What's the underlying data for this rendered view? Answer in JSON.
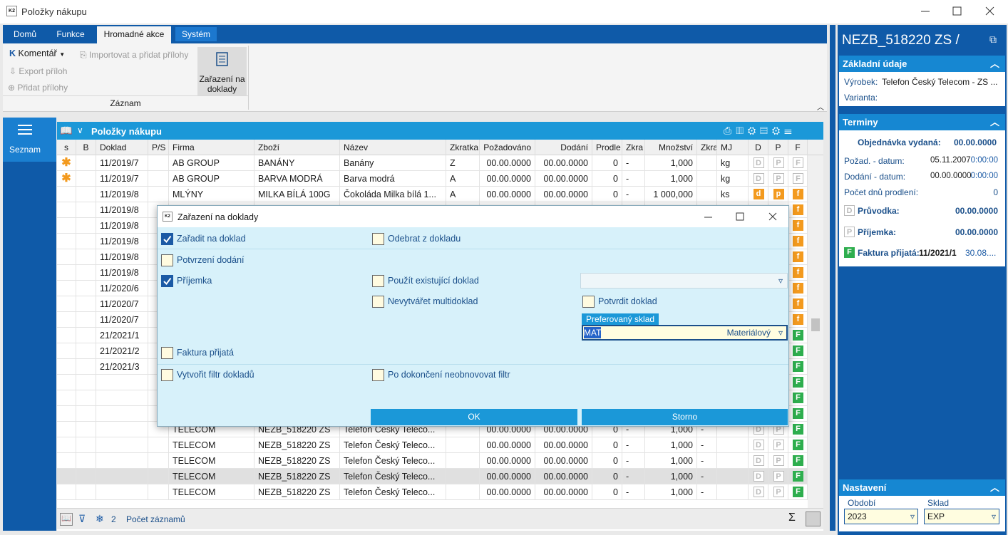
{
  "window": {
    "title": "Položky nákupu"
  },
  "ribbon": {
    "tabs": [
      {
        "label": "Domů",
        "active": false
      },
      {
        "label": "Funkce",
        "active": false
      },
      {
        "label": "Hromadné akce",
        "active": true
      },
      {
        "label": "Systém",
        "active": false
      }
    ],
    "komentar": "Komentář",
    "importovat": "Importovat a přidat přílohy",
    "export": "Export příloh",
    "pridat": "Přidat přílohy",
    "zarazeni": "Zařazení na doklady",
    "group": "Záznam"
  },
  "nav": {
    "seznam": "Seznam"
  },
  "grid": {
    "title": "Položky nákupu",
    "columns": [
      "s",
      "B",
      "Doklad",
      "P/S",
      "Firma",
      "Zboží",
      "Název",
      "Zkratka",
      "Požadováno",
      "Dodání",
      "Prodle",
      "Zkra",
      "Množství",
      "Zkra",
      "MJ",
      "D",
      "P",
      "F"
    ],
    "rows": [
      {
        "s": "✱",
        "doklad": "11/2019/7",
        "firma": "AB GROUP",
        "zbozi": "BANÁNY",
        "nazev": "Banány",
        "zkratka": "Z",
        "pozadovano": "00.00.0000",
        "dodani": "00.00.0000",
        "prodleni": "0",
        "zkra1": "-",
        "mnozstvi": "1,000",
        "mj": "kg",
        "d": {
          "text": "D",
          "style": "gray"
        },
        "p": {
          "text": "P",
          "style": "gray"
        },
        "f": {
          "text": "F",
          "style": "gray"
        }
      },
      {
        "s": "✱",
        "doklad": "11/2019/7",
        "firma": "AB GROUP",
        "zbozi": "BARVA MODRÁ",
        "nazev": "Barva modrá",
        "zkratka": "A",
        "pozadovano": "00.00.0000",
        "dodani": "00.00.0000",
        "prodleni": "0",
        "zkra1": "-",
        "mnozstvi": "1,000",
        "mj": "kg",
        "d": {
          "text": "D",
          "style": "gray"
        },
        "p": {
          "text": "P",
          "style": "gray"
        },
        "f": {
          "text": "F",
          "style": "gray"
        }
      },
      {
        "doklad": "11/2019/8",
        "firma": "MLÝNY",
        "zbozi": "MILKA BÍLÁ 100G",
        "nazev": "Čokoláda Milka bílá 1...",
        "zkratka": "A",
        "pozadovano": "00.00.0000",
        "dodani": "00.00.0000",
        "prodleni": "0",
        "zkra1": "-",
        "mnozstvi": "1 000,000",
        "mj": "ks",
        "d": {
          "text": "d",
          "style": "orange"
        },
        "p": {
          "text": "p",
          "style": "orange"
        },
        "f": {
          "text": "f",
          "style": "orange"
        }
      },
      {
        "doklad": "11/2019/8",
        "f": {
          "text": "f",
          "style": "orange"
        }
      },
      {
        "doklad": "11/2019/8",
        "f": {
          "text": "f",
          "style": "orange"
        }
      },
      {
        "doklad": "11/2019/8",
        "f": {
          "text": "f",
          "style": "orange"
        }
      },
      {
        "doklad": "11/2019/8",
        "f": {
          "text": "f",
          "style": "orange"
        }
      },
      {
        "doklad": "11/2019/8",
        "f": {
          "text": "f",
          "style": "orange"
        }
      },
      {
        "doklad": "11/2020/6",
        "f": {
          "text": "f",
          "style": "orange"
        }
      },
      {
        "doklad": "11/2020/7",
        "f": {
          "text": "f",
          "style": "orange"
        }
      },
      {
        "doklad": "11/2020/7",
        "f": {
          "text": "f",
          "style": "orange"
        }
      },
      {
        "doklad": "21/2021/1",
        "f": {
          "text": "F",
          "style": "green"
        }
      },
      {
        "doklad": "21/2021/2",
        "f": {
          "text": "F",
          "style": "green"
        }
      },
      {
        "doklad": "21/2021/3",
        "f": {
          "text": "F",
          "style": "green"
        }
      },
      {
        "f": {
          "text": "F",
          "style": "green"
        }
      },
      {
        "f": {
          "text": "F",
          "style": "green"
        }
      },
      {
        "f": {
          "text": "F",
          "style": "green"
        }
      },
      {
        "firma": "TELECOM",
        "zbozi": "NEZB_518220 ZS",
        "nazev": "Telefon  Český Teleco...",
        "pozadovano": "00.00.0000",
        "dodani": "00.00.0000",
        "prodleni": "0",
        "zkra1": "-",
        "mnozstvi": "1,000",
        "zkra2": "-",
        "d": {
          "text": "D",
          "style": "gray"
        },
        "p": {
          "text": "P",
          "style": "gray"
        },
        "f": {
          "text": "F",
          "style": "green"
        }
      },
      {
        "firma": "TELECOM",
        "zbozi": "NEZB_518220 ZS",
        "nazev": "Telefon  Český Teleco...",
        "pozadovano": "00.00.0000",
        "dodani": "00.00.0000",
        "prodleni": "0",
        "zkra1": "-",
        "mnozstvi": "1,000",
        "zkra2": "-",
        "d": {
          "text": "D",
          "style": "gray"
        },
        "p": {
          "text": "P",
          "style": "gray"
        },
        "f": {
          "text": "F",
          "style": "green"
        }
      },
      {
        "firma": "TELECOM",
        "zbozi": "NEZB_518220 ZS",
        "nazev": "Telefon  Český Teleco...",
        "pozadovano": "00.00.0000",
        "dodani": "00.00.0000",
        "prodleni": "0",
        "zkra1": "-",
        "mnozstvi": "1,000",
        "zkra2": "-",
        "d": {
          "text": "D",
          "style": "gray"
        },
        "p": {
          "text": "P",
          "style": "gray"
        },
        "f": {
          "text": "F",
          "style": "green"
        }
      },
      {
        "selected": true,
        "firma": "TELECOM",
        "zbozi": "NEZB_518220 ZS",
        "nazev": "Telefon  Český Teleco...",
        "pozadovano": "00.00.0000",
        "dodani": "00.00.0000",
        "prodleni": "0",
        "zkra1": "-",
        "mnozstvi": "1,000",
        "zkra2": "-",
        "d": {
          "text": "D",
          "style": "gray"
        },
        "p": {
          "text": "P",
          "style": "gray"
        },
        "f": {
          "text": "F",
          "style": "green"
        }
      },
      {
        "firma": "TELECOM",
        "zbozi": "NEZB_518220 ZS",
        "nazev": "Telefon  Český Teleco...",
        "pozadovano": "00.00.0000",
        "dodani": "00.00.0000",
        "prodleni": "0",
        "zkra1": "-",
        "mnozstvi": "1,000",
        "zkra2": "-",
        "d": {
          "text": "D",
          "style": "gray"
        },
        "p": {
          "text": "P",
          "style": "gray"
        },
        "f": {
          "text": "F",
          "style": "green"
        }
      }
    ],
    "footer": {
      "count": "2",
      "label": "Počet záznamů"
    }
  },
  "dialog": {
    "title": "Zařazení na doklady",
    "options": [
      {
        "label": "Zařadit na doklad",
        "checked": true
      },
      {
        "label": "Odebrat z dokladu",
        "checked": false
      },
      {
        "label": "Potvrzení dodání",
        "checked": false
      },
      {
        "label": "Příjemka",
        "checked": true
      },
      {
        "label": "Použít existující doklad",
        "checked": false
      },
      {
        "label": "Nevytvářet multidoklad",
        "checked": false
      },
      {
        "label": "Potvrdit doklad",
        "checked": false
      },
      {
        "label": "Faktura přijatá",
        "checked": false
      },
      {
        "label": "Vytvořit filtr dokladů",
        "checked": false
      },
      {
        "label": "Po dokončení neobnovovat filtr",
        "checked": false
      }
    ],
    "sklad_label": "Preferovaný sklad",
    "sklad_code": "MAT",
    "sklad_name": "Materiálový",
    "ok": "OK",
    "storno": "Storno"
  },
  "detail": {
    "title": "NEZB_518220 ZS /",
    "zakladni": {
      "header": "Základní údaje",
      "vyrobek_label": "Výrobek:",
      "vyrobek": "Telefon  Český Telecom - ZS ...",
      "varianta_label": "Varianta:"
    },
    "terminy": {
      "header": "Terminy",
      "objednavka_label": "Objednávka vydaná:",
      "objednavka": "00.00.0000",
      "pozad_label": "Požad. - datum:",
      "pozad_date": "05.11.2007",
      "pozad_time": "0:00:00",
      "dodani_label": "Dodání - datum:",
      "dodani_date": "00.00.0000",
      "dodani_time": "0:00:00",
      "prodleni_label": "Počet dnů prodlení:",
      "prodleni": "0",
      "pruvodka_icon": "D",
      "pruvodka_label": "Průvodka:",
      "pruvodka": "00.00.0000",
      "prijemka_icon": "P",
      "prijemka_label": "Příjemka:",
      "prijemka": "00.00.0000",
      "faktura_icon": "F",
      "faktura_label": "Faktura přijatá:",
      "faktura_doc": "11/2021/1",
      "faktura_date": "30.08...."
    },
    "nastaveni": {
      "header": "Nastavení",
      "obdobi_label": "Období",
      "obdobi": "2023",
      "sklad_label": "Sklad",
      "sklad": "EXP"
    }
  }
}
